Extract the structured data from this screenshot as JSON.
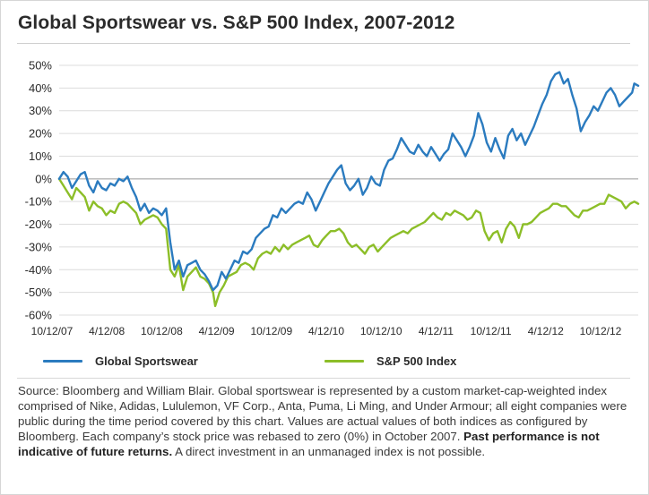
{
  "title": "Global Sportswear vs. S&P 500 Index, 2007-2012",
  "colors": {
    "sportswear": "#2b7bbf",
    "sp500": "#8cbe28",
    "grid": "#dcdcdc",
    "zero_line": "#9a9a9a",
    "text": "#2a2a2a"
  },
  "legend": {
    "sportswear": "Global Sportswear",
    "sp500": "S&P 500 Index"
  },
  "footnote": {
    "part1": "Source: Bloomberg and William Blair. Global sportswear is represented by a custom market-cap-weighted index comprised of Nike, Adidas, Lululemon, VF Corp., Anta, Puma, Li Ming, and Under Armour; all eight companies were public during the time period covered by this chart. Values are actual values of both indices as configured by Bloomberg. Each company’s stock price was rebased to zero (0%) in October 2007. ",
    "bold": "Past performance is not indicative of future returns.",
    "part2": " A direct investment in an unmanaged index is not possible."
  },
  "chart_data": {
    "type": "line",
    "x_ticks": [
      "10/12/07",
      "4/12/08",
      "10/12/08",
      "4/12/09",
      "10/12/09",
      "4/12/10",
      "10/12/10",
      "4/12/11",
      "10/12/11",
      "4/12/12",
      "10/12/12"
    ],
    "y_ticks": [
      "50%",
      "40%",
      "30%",
      "20%",
      "10%",
      "0%",
      "-10%",
      "-20%",
      "-30%",
      "-40%",
      "-50%",
      "-60%"
    ],
    "ylim": [
      -60,
      50
    ],
    "xlim": [
      "2007-10-12",
      "2012-12-20"
    ],
    "grid": "horizontal",
    "legend_position": "bottom",
    "series": [
      {
        "name": "Global Sportswear",
        "color_key": "sportswear",
        "points": [
          [
            "2007-10-12",
            0
          ],
          [
            "2007-10-26",
            3
          ],
          [
            "2007-11-09",
            1
          ],
          [
            "2007-11-23",
            -4
          ],
          [
            "2007-12-07",
            -1
          ],
          [
            "2007-12-21",
            2
          ],
          [
            "2008-01-04",
            3
          ],
          [
            "2008-01-18",
            -3
          ],
          [
            "2008-02-01",
            -6
          ],
          [
            "2008-02-15",
            -1
          ],
          [
            "2008-02-29",
            -4
          ],
          [
            "2008-03-14",
            -5
          ],
          [
            "2008-03-28",
            -2
          ],
          [
            "2008-04-11",
            -3
          ],
          [
            "2008-04-25",
            0
          ],
          [
            "2008-05-09",
            -1
          ],
          [
            "2008-05-23",
            1
          ],
          [
            "2008-06-06",
            -4
          ],
          [
            "2008-06-20",
            -8
          ],
          [
            "2008-07-04",
            -14
          ],
          [
            "2008-07-18",
            -11
          ],
          [
            "2008-08-01",
            -15
          ],
          [
            "2008-08-15",
            -13
          ],
          [
            "2008-08-29",
            -14
          ],
          [
            "2008-09-12",
            -16
          ],
          [
            "2008-09-26",
            -13
          ],
          [
            "2008-10-10",
            -28
          ],
          [
            "2008-10-24",
            -40
          ],
          [
            "2008-11-07",
            -36
          ],
          [
            "2008-11-21",
            -43
          ],
          [
            "2008-12-05",
            -38
          ],
          [
            "2008-12-19",
            -37
          ],
          [
            "2009-01-02",
            -36
          ],
          [
            "2009-01-16",
            -40
          ],
          [
            "2009-01-30",
            -42
          ],
          [
            "2009-02-13",
            -45
          ],
          [
            "2009-02-27",
            -49
          ],
          [
            "2009-03-13",
            -47
          ],
          [
            "2009-03-27",
            -41
          ],
          [
            "2009-04-10",
            -44
          ],
          [
            "2009-04-24",
            -40
          ],
          [
            "2009-05-08",
            -36
          ],
          [
            "2009-05-22",
            -37
          ],
          [
            "2009-06-05",
            -32
          ],
          [
            "2009-06-19",
            -33
          ],
          [
            "2009-07-03",
            -31
          ],
          [
            "2009-07-17",
            -26
          ],
          [
            "2009-07-31",
            -24
          ],
          [
            "2009-08-14",
            -22
          ],
          [
            "2009-08-28",
            -21
          ],
          [
            "2009-09-11",
            -16
          ],
          [
            "2009-09-25",
            -17
          ],
          [
            "2009-10-09",
            -13
          ],
          [
            "2009-10-23",
            -15
          ],
          [
            "2009-11-06",
            -13
          ],
          [
            "2009-11-20",
            -11
          ],
          [
            "2009-12-04",
            -10
          ],
          [
            "2009-12-18",
            -11
          ],
          [
            "2010-01-01",
            -6
          ],
          [
            "2010-01-15",
            -9
          ],
          [
            "2010-01-29",
            -14
          ],
          [
            "2010-02-12",
            -10
          ],
          [
            "2010-02-26",
            -6
          ],
          [
            "2010-03-12",
            -2
          ],
          [
            "2010-03-26",
            1
          ],
          [
            "2010-04-09",
            4
          ],
          [
            "2010-04-23",
            6
          ],
          [
            "2010-05-07",
            -2
          ],
          [
            "2010-05-21",
            -5
          ],
          [
            "2010-06-04",
            -3
          ],
          [
            "2010-06-18",
            0
          ],
          [
            "2010-07-02",
            -7
          ],
          [
            "2010-07-16",
            -4
          ],
          [
            "2010-07-30",
            1
          ],
          [
            "2010-08-13",
            -2
          ],
          [
            "2010-08-27",
            -3
          ],
          [
            "2010-09-10",
            4
          ],
          [
            "2010-09-24",
            8
          ],
          [
            "2010-10-08",
            9
          ],
          [
            "2010-10-22",
            13
          ],
          [
            "2010-11-05",
            18
          ],
          [
            "2010-11-19",
            15
          ],
          [
            "2010-12-03",
            12
          ],
          [
            "2010-12-17",
            11
          ],
          [
            "2010-12-31",
            15
          ],
          [
            "2011-01-14",
            12
          ],
          [
            "2011-01-28",
            10
          ],
          [
            "2011-02-11",
            14
          ],
          [
            "2011-02-25",
            11
          ],
          [
            "2011-03-11",
            8
          ],
          [
            "2011-03-25",
            11
          ],
          [
            "2011-04-08",
            13
          ],
          [
            "2011-04-22",
            20
          ],
          [
            "2011-05-06",
            17
          ],
          [
            "2011-05-20",
            14
          ],
          [
            "2011-06-03",
            10
          ],
          [
            "2011-06-17",
            14
          ],
          [
            "2011-07-01",
            19
          ],
          [
            "2011-07-15",
            29
          ],
          [
            "2011-07-29",
            24
          ],
          [
            "2011-08-12",
            16
          ],
          [
            "2011-08-26",
            12
          ],
          [
            "2011-09-09",
            18
          ],
          [
            "2011-09-23",
            13
          ],
          [
            "2011-10-07",
            9
          ],
          [
            "2011-10-21",
            19
          ],
          [
            "2011-11-04",
            22
          ],
          [
            "2011-11-18",
            17
          ],
          [
            "2011-12-02",
            20
          ],
          [
            "2011-12-16",
            15
          ],
          [
            "2011-12-30",
            19
          ],
          [
            "2012-01-13",
            23
          ],
          [
            "2012-01-27",
            28
          ],
          [
            "2012-02-10",
            33
          ],
          [
            "2012-02-24",
            37
          ],
          [
            "2012-03-09",
            43
          ],
          [
            "2012-03-23",
            46
          ],
          [
            "2012-04-06",
            47
          ],
          [
            "2012-04-20",
            42
          ],
          [
            "2012-05-04",
            44
          ],
          [
            "2012-05-18",
            37
          ],
          [
            "2012-06-01",
            31
          ],
          [
            "2012-06-15",
            21
          ],
          [
            "2012-06-29",
            25
          ],
          [
            "2012-07-13",
            28
          ],
          [
            "2012-07-27",
            32
          ],
          [
            "2012-08-10",
            30
          ],
          [
            "2012-08-24",
            34
          ],
          [
            "2012-09-07",
            38
          ],
          [
            "2012-09-21",
            40
          ],
          [
            "2012-10-05",
            37
          ],
          [
            "2012-10-19",
            32
          ],
          [
            "2012-11-02",
            34
          ],
          [
            "2012-11-16",
            36
          ],
          [
            "2012-11-30",
            38
          ],
          [
            "2012-12-07",
            42
          ],
          [
            "2012-12-20",
            41
          ]
        ]
      },
      {
        "name": "S&P 500 Index",
        "color_key": "sp500",
        "points": [
          [
            "2007-10-12",
            0
          ],
          [
            "2007-10-26",
            -3
          ],
          [
            "2007-11-09",
            -6
          ],
          [
            "2007-11-23",
            -9
          ],
          [
            "2007-12-07",
            -4
          ],
          [
            "2007-12-21",
            -6
          ],
          [
            "2008-01-04",
            -8
          ],
          [
            "2008-01-18",
            -14
          ],
          [
            "2008-02-01",
            -10
          ],
          [
            "2008-02-15",
            -12
          ],
          [
            "2008-02-29",
            -13
          ],
          [
            "2008-03-14",
            -16
          ],
          [
            "2008-03-28",
            -14
          ],
          [
            "2008-04-11",
            -15
          ],
          [
            "2008-04-25",
            -11
          ],
          [
            "2008-05-09",
            -10
          ],
          [
            "2008-05-23",
            -11
          ],
          [
            "2008-06-06",
            -13
          ],
          [
            "2008-06-20",
            -15
          ],
          [
            "2008-07-04",
            -20
          ],
          [
            "2008-07-18",
            -18
          ],
          [
            "2008-08-01",
            -17
          ],
          [
            "2008-08-15",
            -16
          ],
          [
            "2008-08-29",
            -17
          ],
          [
            "2008-09-12",
            -20
          ],
          [
            "2008-09-26",
            -22
          ],
          [
            "2008-10-10",
            -40
          ],
          [
            "2008-10-24",
            -43
          ],
          [
            "2008-11-07",
            -38
          ],
          [
            "2008-11-21",
            -49
          ],
          [
            "2008-12-05",
            -43
          ],
          [
            "2008-12-19",
            -41
          ],
          [
            "2009-01-02",
            -39
          ],
          [
            "2009-01-16",
            -43
          ],
          [
            "2009-01-30",
            -44
          ],
          [
            "2009-02-13",
            -46
          ],
          [
            "2009-02-27",
            -50
          ],
          [
            "2009-03-06",
            -56
          ],
          [
            "2009-03-20",
            -50
          ],
          [
            "2009-04-03",
            -47
          ],
          [
            "2009-04-17",
            -43
          ],
          [
            "2009-05-01",
            -42
          ],
          [
            "2009-05-15",
            -41
          ],
          [
            "2009-05-29",
            -38
          ],
          [
            "2009-06-12",
            -37
          ],
          [
            "2009-06-26",
            -38
          ],
          [
            "2009-07-10",
            -40
          ],
          [
            "2009-07-24",
            -35
          ],
          [
            "2009-08-07",
            -33
          ],
          [
            "2009-08-21",
            -32
          ],
          [
            "2009-09-04",
            -33
          ],
          [
            "2009-09-18",
            -30
          ],
          [
            "2009-10-02",
            -32
          ],
          [
            "2009-10-16",
            -29
          ],
          [
            "2009-10-30",
            -31
          ],
          [
            "2009-11-13",
            -29
          ],
          [
            "2009-11-27",
            -28
          ],
          [
            "2009-12-11",
            -27
          ],
          [
            "2009-12-25",
            -26
          ],
          [
            "2010-01-08",
            -25
          ],
          [
            "2010-01-22",
            -29
          ],
          [
            "2010-02-05",
            -30
          ],
          [
            "2010-02-19",
            -27
          ],
          [
            "2010-03-05",
            -25
          ],
          [
            "2010-03-19",
            -23
          ],
          [
            "2010-04-02",
            -23
          ],
          [
            "2010-04-16",
            -22
          ],
          [
            "2010-04-30",
            -24
          ],
          [
            "2010-05-14",
            -28
          ],
          [
            "2010-05-28",
            -30
          ],
          [
            "2010-06-11",
            -29
          ],
          [
            "2010-06-25",
            -31
          ],
          [
            "2010-07-09",
            -33
          ],
          [
            "2010-07-23",
            -30
          ],
          [
            "2010-08-06",
            -29
          ],
          [
            "2010-08-20",
            -32
          ],
          [
            "2010-09-03",
            -30
          ],
          [
            "2010-09-17",
            -28
          ],
          [
            "2010-10-01",
            -26
          ],
          [
            "2010-10-15",
            -25
          ],
          [
            "2010-10-29",
            -24
          ],
          [
            "2010-11-12",
            -23
          ],
          [
            "2010-11-26",
            -24
          ],
          [
            "2010-12-10",
            -22
          ],
          [
            "2010-12-24",
            -21
          ],
          [
            "2011-01-07",
            -20
          ],
          [
            "2011-01-21",
            -19
          ],
          [
            "2011-02-04",
            -17
          ],
          [
            "2011-02-18",
            -15
          ],
          [
            "2011-03-04",
            -17
          ],
          [
            "2011-03-18",
            -18
          ],
          [
            "2011-04-01",
            -15
          ],
          [
            "2011-04-15",
            -16
          ],
          [
            "2011-04-29",
            -14
          ],
          [
            "2011-05-13",
            -15
          ],
          [
            "2011-05-27",
            -16
          ],
          [
            "2011-06-10",
            -18
          ],
          [
            "2011-06-24",
            -17
          ],
          [
            "2011-07-08",
            -14
          ],
          [
            "2011-07-22",
            -15
          ],
          [
            "2011-08-05",
            -23
          ],
          [
            "2011-08-19",
            -27
          ],
          [
            "2011-09-02",
            -24
          ],
          [
            "2011-09-16",
            -23
          ],
          [
            "2011-09-30",
            -28
          ],
          [
            "2011-10-14",
            -22
          ],
          [
            "2011-10-28",
            -19
          ],
          [
            "2011-11-11",
            -21
          ],
          [
            "2011-11-25",
            -26
          ],
          [
            "2011-12-09",
            -20
          ],
          [
            "2011-12-23",
            -20
          ],
          [
            "2012-01-06",
            -19
          ],
          [
            "2012-01-20",
            -17
          ],
          [
            "2012-02-03",
            -15
          ],
          [
            "2012-02-17",
            -14
          ],
          [
            "2012-03-02",
            -13
          ],
          [
            "2012-03-16",
            -11
          ],
          [
            "2012-03-30",
            -11
          ],
          [
            "2012-04-13",
            -12
          ],
          [
            "2012-04-27",
            -12
          ],
          [
            "2012-05-11",
            -14
          ],
          [
            "2012-05-25",
            -16
          ],
          [
            "2012-06-08",
            -17
          ],
          [
            "2012-06-22",
            -14
          ],
          [
            "2012-07-06",
            -14
          ],
          [
            "2012-07-20",
            -13
          ],
          [
            "2012-08-03",
            -12
          ],
          [
            "2012-08-17",
            -11
          ],
          [
            "2012-08-31",
            -11
          ],
          [
            "2012-09-14",
            -7
          ],
          [
            "2012-09-28",
            -8
          ],
          [
            "2012-10-12",
            -9
          ],
          [
            "2012-10-26",
            -10
          ],
          [
            "2012-11-09",
            -13
          ],
          [
            "2012-11-23",
            -11
          ],
          [
            "2012-12-07",
            -10
          ],
          [
            "2012-12-20",
            -11
          ]
        ]
      }
    ]
  }
}
